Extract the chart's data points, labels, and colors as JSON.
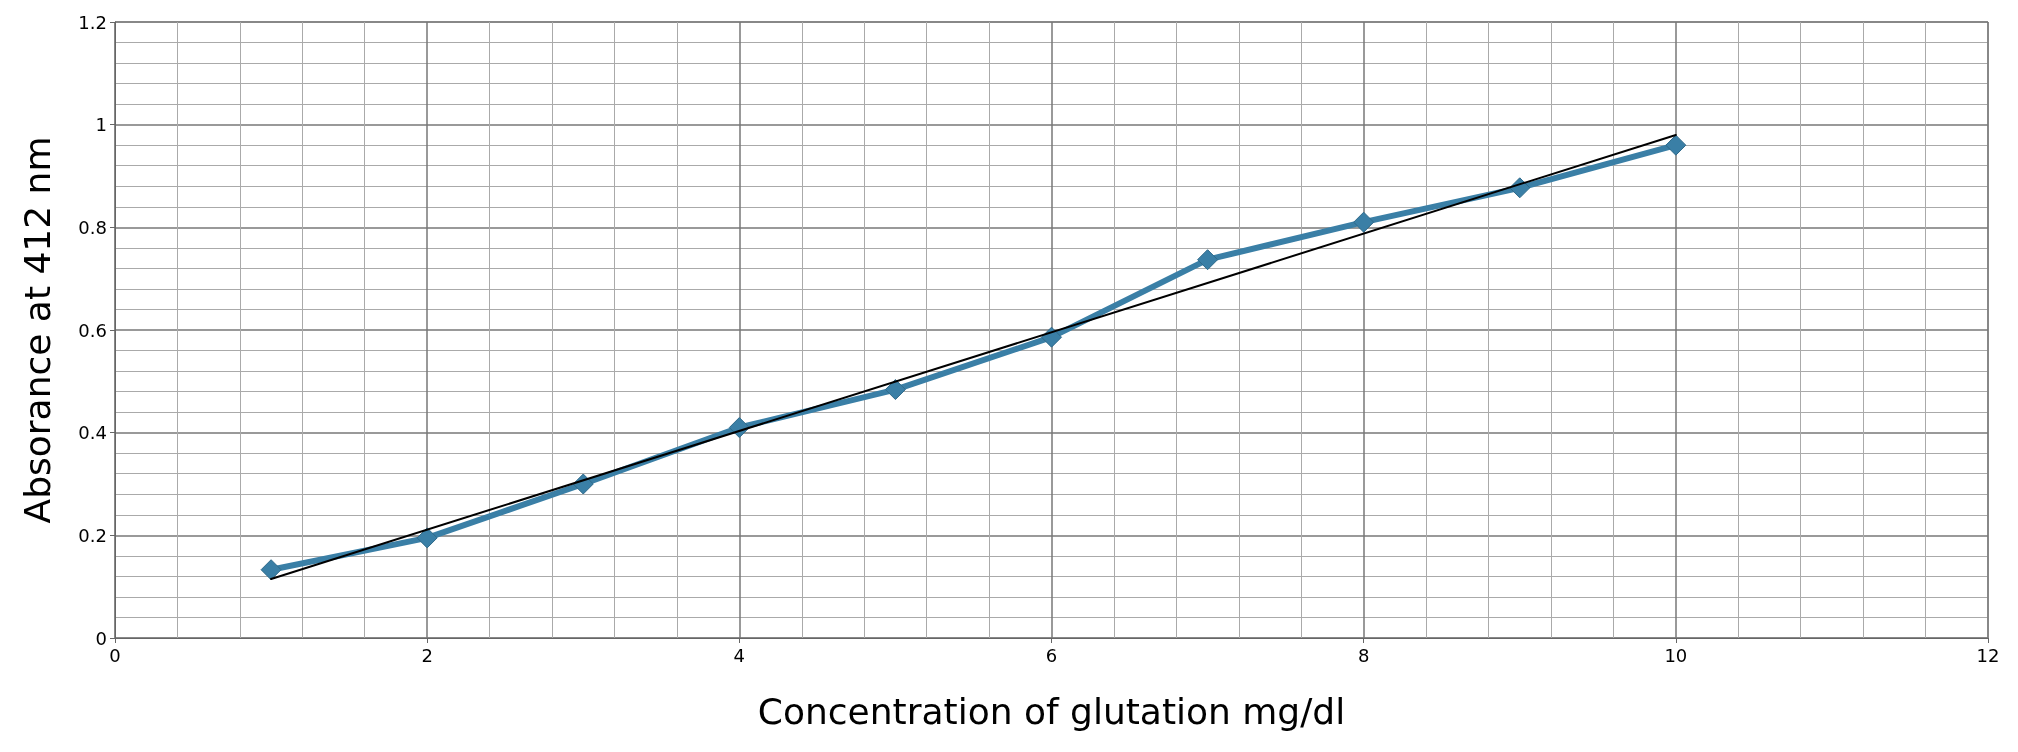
{
  "chart_data": {
    "type": "line",
    "xlabel": "Concentration of glutation mg/dl",
    "ylabel": "Absorance at 412 nm",
    "xlim": [
      0,
      12
    ],
    "xticks": [
      0,
      2,
      4,
      6,
      8,
      10,
      12
    ],
    "ylim": [
      0,
      1.2
    ],
    "yticks": [
      0,
      0.2,
      0.4,
      0.6,
      0.8,
      1,
      1.2
    ],
    "grid": true,
    "series": [
      {
        "color": "#3a7fa6",
        "marker": "diamond",
        "x": [
          1,
          2,
          3,
          4,
          5,
          6,
          7,
          8,
          9,
          10
        ],
        "values": [
          0.133,
          0.195,
          0.3,
          0.41,
          0.484,
          0.586,
          0.737,
          0.81,
          0.877,
          0.96
        ]
      },
      {
        "color": "#000000",
        "marker": "none",
        "x": [
          1,
          10
        ],
        "values": [
          0.115,
          0.98
        ]
      }
    ]
  }
}
